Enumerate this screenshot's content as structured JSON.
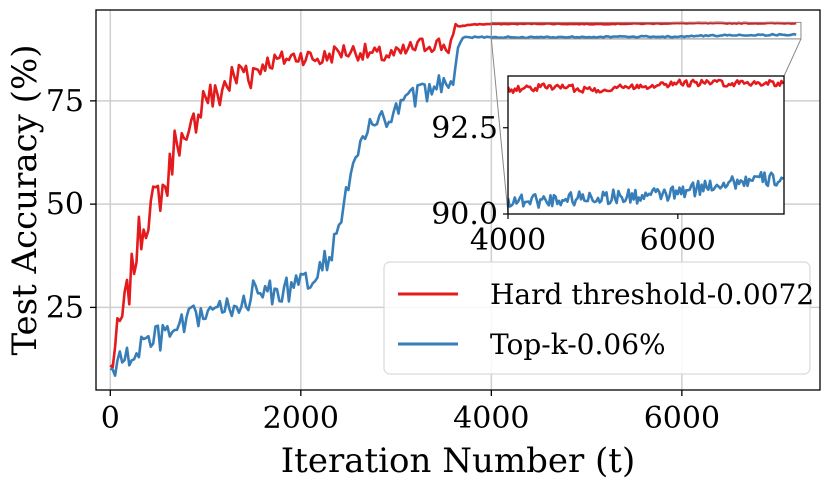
{
  "chart_data": {
    "type": "line",
    "title": "",
    "xlabel": "Iteration Number (t)",
    "ylabel": "Test Accuracy (%)",
    "xlim": [
      -150,
      7450
    ],
    "ylim": [
      5,
      97
    ],
    "xticks": [
      0,
      2000,
      4000,
      6000
    ],
    "yticks": [
      25,
      50,
      75
    ],
    "xtick_labels": [
      "0",
      "2000",
      "4000",
      "6000"
    ],
    "ytick_labels": [
      "25",
      "50",
      "75"
    ],
    "grid": true,
    "legend_position": "bottom-right",
    "series": [
      {
        "name": "Hard threshold-0.0072",
        "color": "#e41a1c",
        "x": [
          0,
          100,
          200,
          300,
          400,
          500,
          600,
          700,
          800,
          900,
          1000,
          1100,
          1200,
          1300,
          1400,
          1500,
          1600,
          1800,
          2000,
          2200,
          2400,
          2600,
          2800,
          3000,
          3200,
          3400,
          3550,
          3650,
          3800,
          4000,
          4500,
          5000,
          5500,
          6000,
          6500,
          7000,
          7200
        ],
        "y": [
          10,
          20,
          30,
          42,
          48,
          52,
          55,
          68,
          62,
          72,
          77,
          75,
          79,
          80,
          83,
          82,
          84,
          85,
          86,
          85,
          87,
          87,
          86,
          86,
          88,
          89,
          88,
          93,
          93.5,
          93.6,
          93.7,
          93.6,
          93.7,
          93.8,
          93.8,
          93.8,
          93.8
        ]
      },
      {
        "name": "Top-k-0.06%",
        "color": "#377eb8",
        "x": [
          0,
          200,
          400,
          600,
          800,
          1000,
          1200,
          1400,
          1600,
          1800,
          2000,
          2200,
          2300,
          2400,
          2500,
          2600,
          2700,
          2800,
          2900,
          3000,
          3100,
          3200,
          3300,
          3400,
          3500,
          3600,
          3650,
          3700,
          4000,
          4500,
          5000,
          5500,
          6000,
          6500,
          7000,
          7200
        ],
        "y": [
          10,
          13,
          17,
          18,
          21,
          24,
          24,
          27,
          29,
          29,
          30,
          33,
          38,
          45,
          54,
          63,
          68,
          69,
          71,
          72,
          75,
          76,
          77,
          78,
          80,
          80,
          88,
          90.4,
          90.4,
          90.4,
          90.5,
          90.5,
          90.6,
          90.9,
          91.0,
          91.0
        ]
      }
    ],
    "inset": {
      "xlim": [
        4000,
        7250
      ],
      "ylim": [
        90.0,
        94.0
      ],
      "xticks": [
        4000,
        6000
      ],
      "yticks": [
        90.0,
        92.5
      ],
      "xtick_labels": [
        "4000",
        "6000"
      ],
      "ytick_labels": [
        "90.0",
        "92.5"
      ]
    }
  }
}
